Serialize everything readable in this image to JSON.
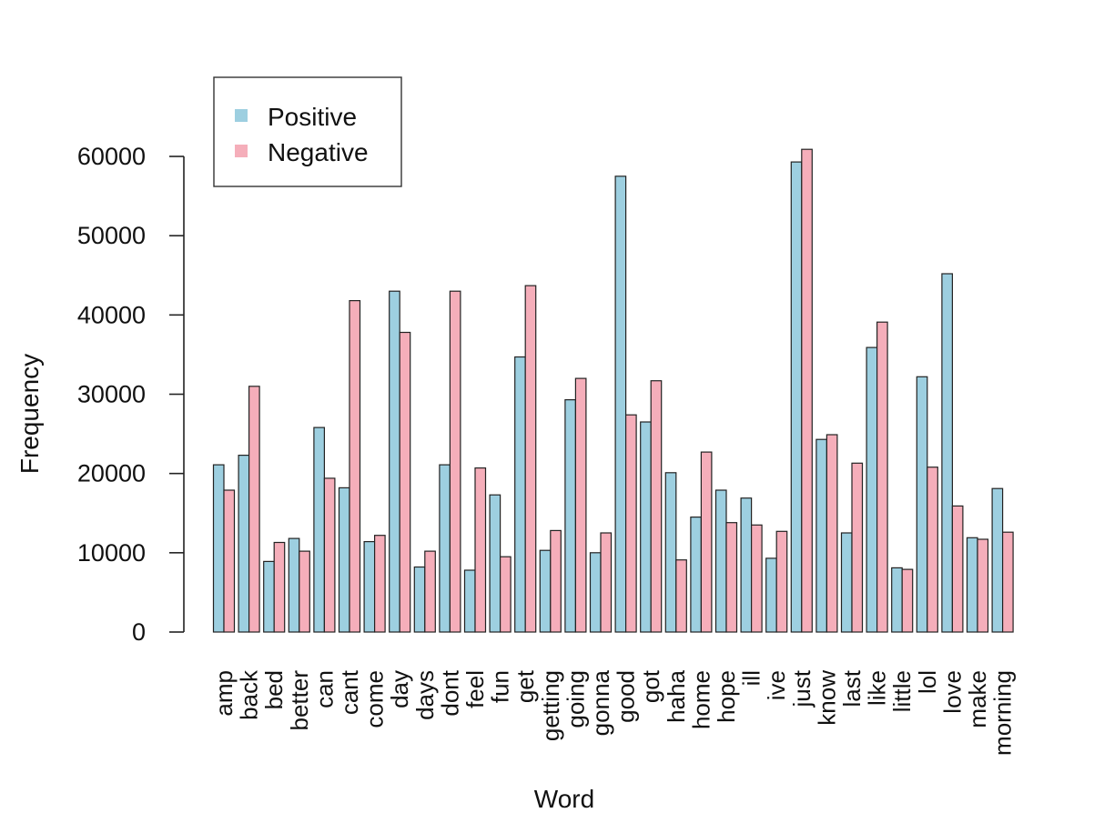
{
  "chart_data": {
    "type": "bar",
    "title": "",
    "xlabel": "Word",
    "ylabel": "Frequency",
    "ylim": [
      0,
      60000
    ],
    "yticks": [
      0,
      10000,
      20000,
      30000,
      40000,
      50000,
      60000
    ],
    "legend_position": "top-left",
    "grid": false,
    "categories": [
      "amp",
      "back",
      "bed",
      "better",
      "can",
      "cant",
      "come",
      "day",
      "days",
      "dont",
      "feel",
      "fun",
      "get",
      "getting",
      "going",
      "gonna",
      "good",
      "got",
      "haha",
      "home",
      "hope",
      "ill",
      "ive",
      "just",
      "know",
      "last",
      "like",
      "little",
      "lol",
      "love",
      "make",
      "morning"
    ],
    "series": [
      {
        "name": "Positive",
        "color": "#9DCFE0",
        "values": [
          21100,
          22300,
          8900,
          11800,
          25800,
          18200,
          11400,
          43000,
          8200,
          21100,
          7800,
          17300,
          34700,
          10300,
          29300,
          10000,
          57500,
          26500,
          20100,
          14500,
          17900,
          16900,
          9300,
          59300,
          24300,
          12500,
          35900,
          8100,
          32200,
          45200,
          11900,
          18100
        ]
      },
      {
        "name": "Negative",
        "color": "#F5AEBA",
        "values": [
          17900,
          31000,
          11300,
          10200,
          19400,
          41800,
          12200,
          37800,
          10200,
          43000,
          20700,
          9500,
          43700,
          12800,
          32000,
          12500,
          27400,
          31700,
          9100,
          22700,
          13800,
          13500,
          12700,
          60900,
          24900,
          21300,
          39100,
          7900,
          20800,
          15900,
          11700,
          12600
        ]
      }
    ]
  }
}
